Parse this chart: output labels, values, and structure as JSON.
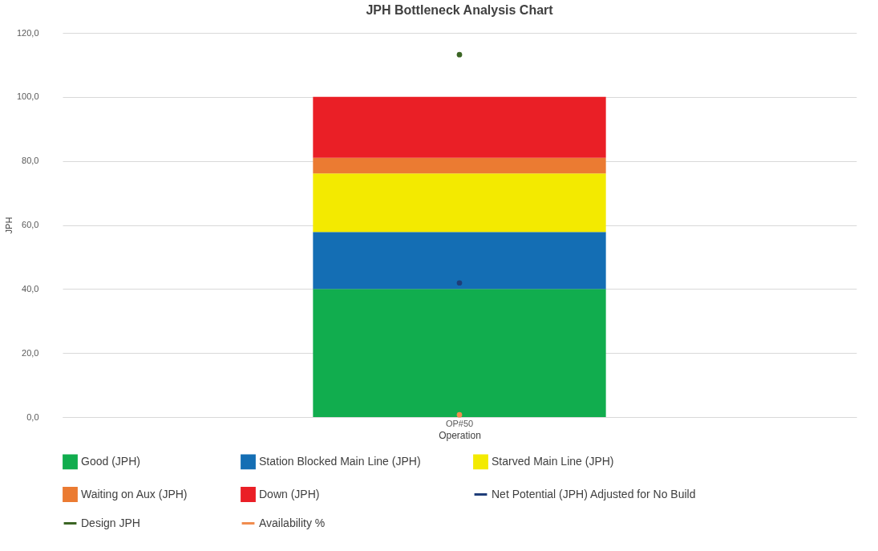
{
  "chart_data": {
    "type": "bar",
    "title": "JPH Bottleneck Analysis Chart",
    "xlabel": "Operation",
    "ylabel": "JPH",
    "categories": [
      "OP#50"
    ],
    "stacked": true,
    "series": [
      {
        "name": "Good (JPH)",
        "color": "#11ad4e",
        "values": [
          40
        ]
      },
      {
        "name": "Station Blocked Main Line (JPH)",
        "color": "#146eb4",
        "values": [
          17.8
        ]
      },
      {
        "name": "Starved Main Line (JPH)",
        "color": "#f3ea00",
        "values": [
          18.3
        ]
      },
      {
        "name": "Waiting on Aux (JPH)",
        "color": "#eb7b32",
        "values": [
          4.9
        ]
      },
      {
        "name": "Down (JPH)",
        "color": "#ea1f26",
        "values": [
          19
        ]
      },
      {
        "name": "Net Potential (JPH) Adjusted for No Build",
        "color": "#1f3e79",
        "type": "line",
        "values": [
          41.9
        ]
      },
      {
        "name": "Design JPH",
        "color": "#3b6524",
        "type": "line",
        "values": [
          113.2
        ]
      },
      {
        "name": "Availability %",
        "color": "#f08c4f",
        "type": "line",
        "values": [
          0.7
        ]
      }
    ],
    "ylim": [
      0,
      120
    ],
    "yticks": [
      {
        "value": 0,
        "label": "0,0"
      },
      {
        "value": 20,
        "label": "20,0"
      },
      {
        "value": 40,
        "label": "40,0"
      },
      {
        "value": 60,
        "label": "60,0"
      },
      {
        "value": 80,
        "label": "80,0"
      },
      {
        "value": 100,
        "label": "100,0"
      },
      {
        "value": 120,
        "label": "120,0"
      }
    ],
    "grid": "y",
    "legend": "bottom",
    "marker": "circle"
  }
}
